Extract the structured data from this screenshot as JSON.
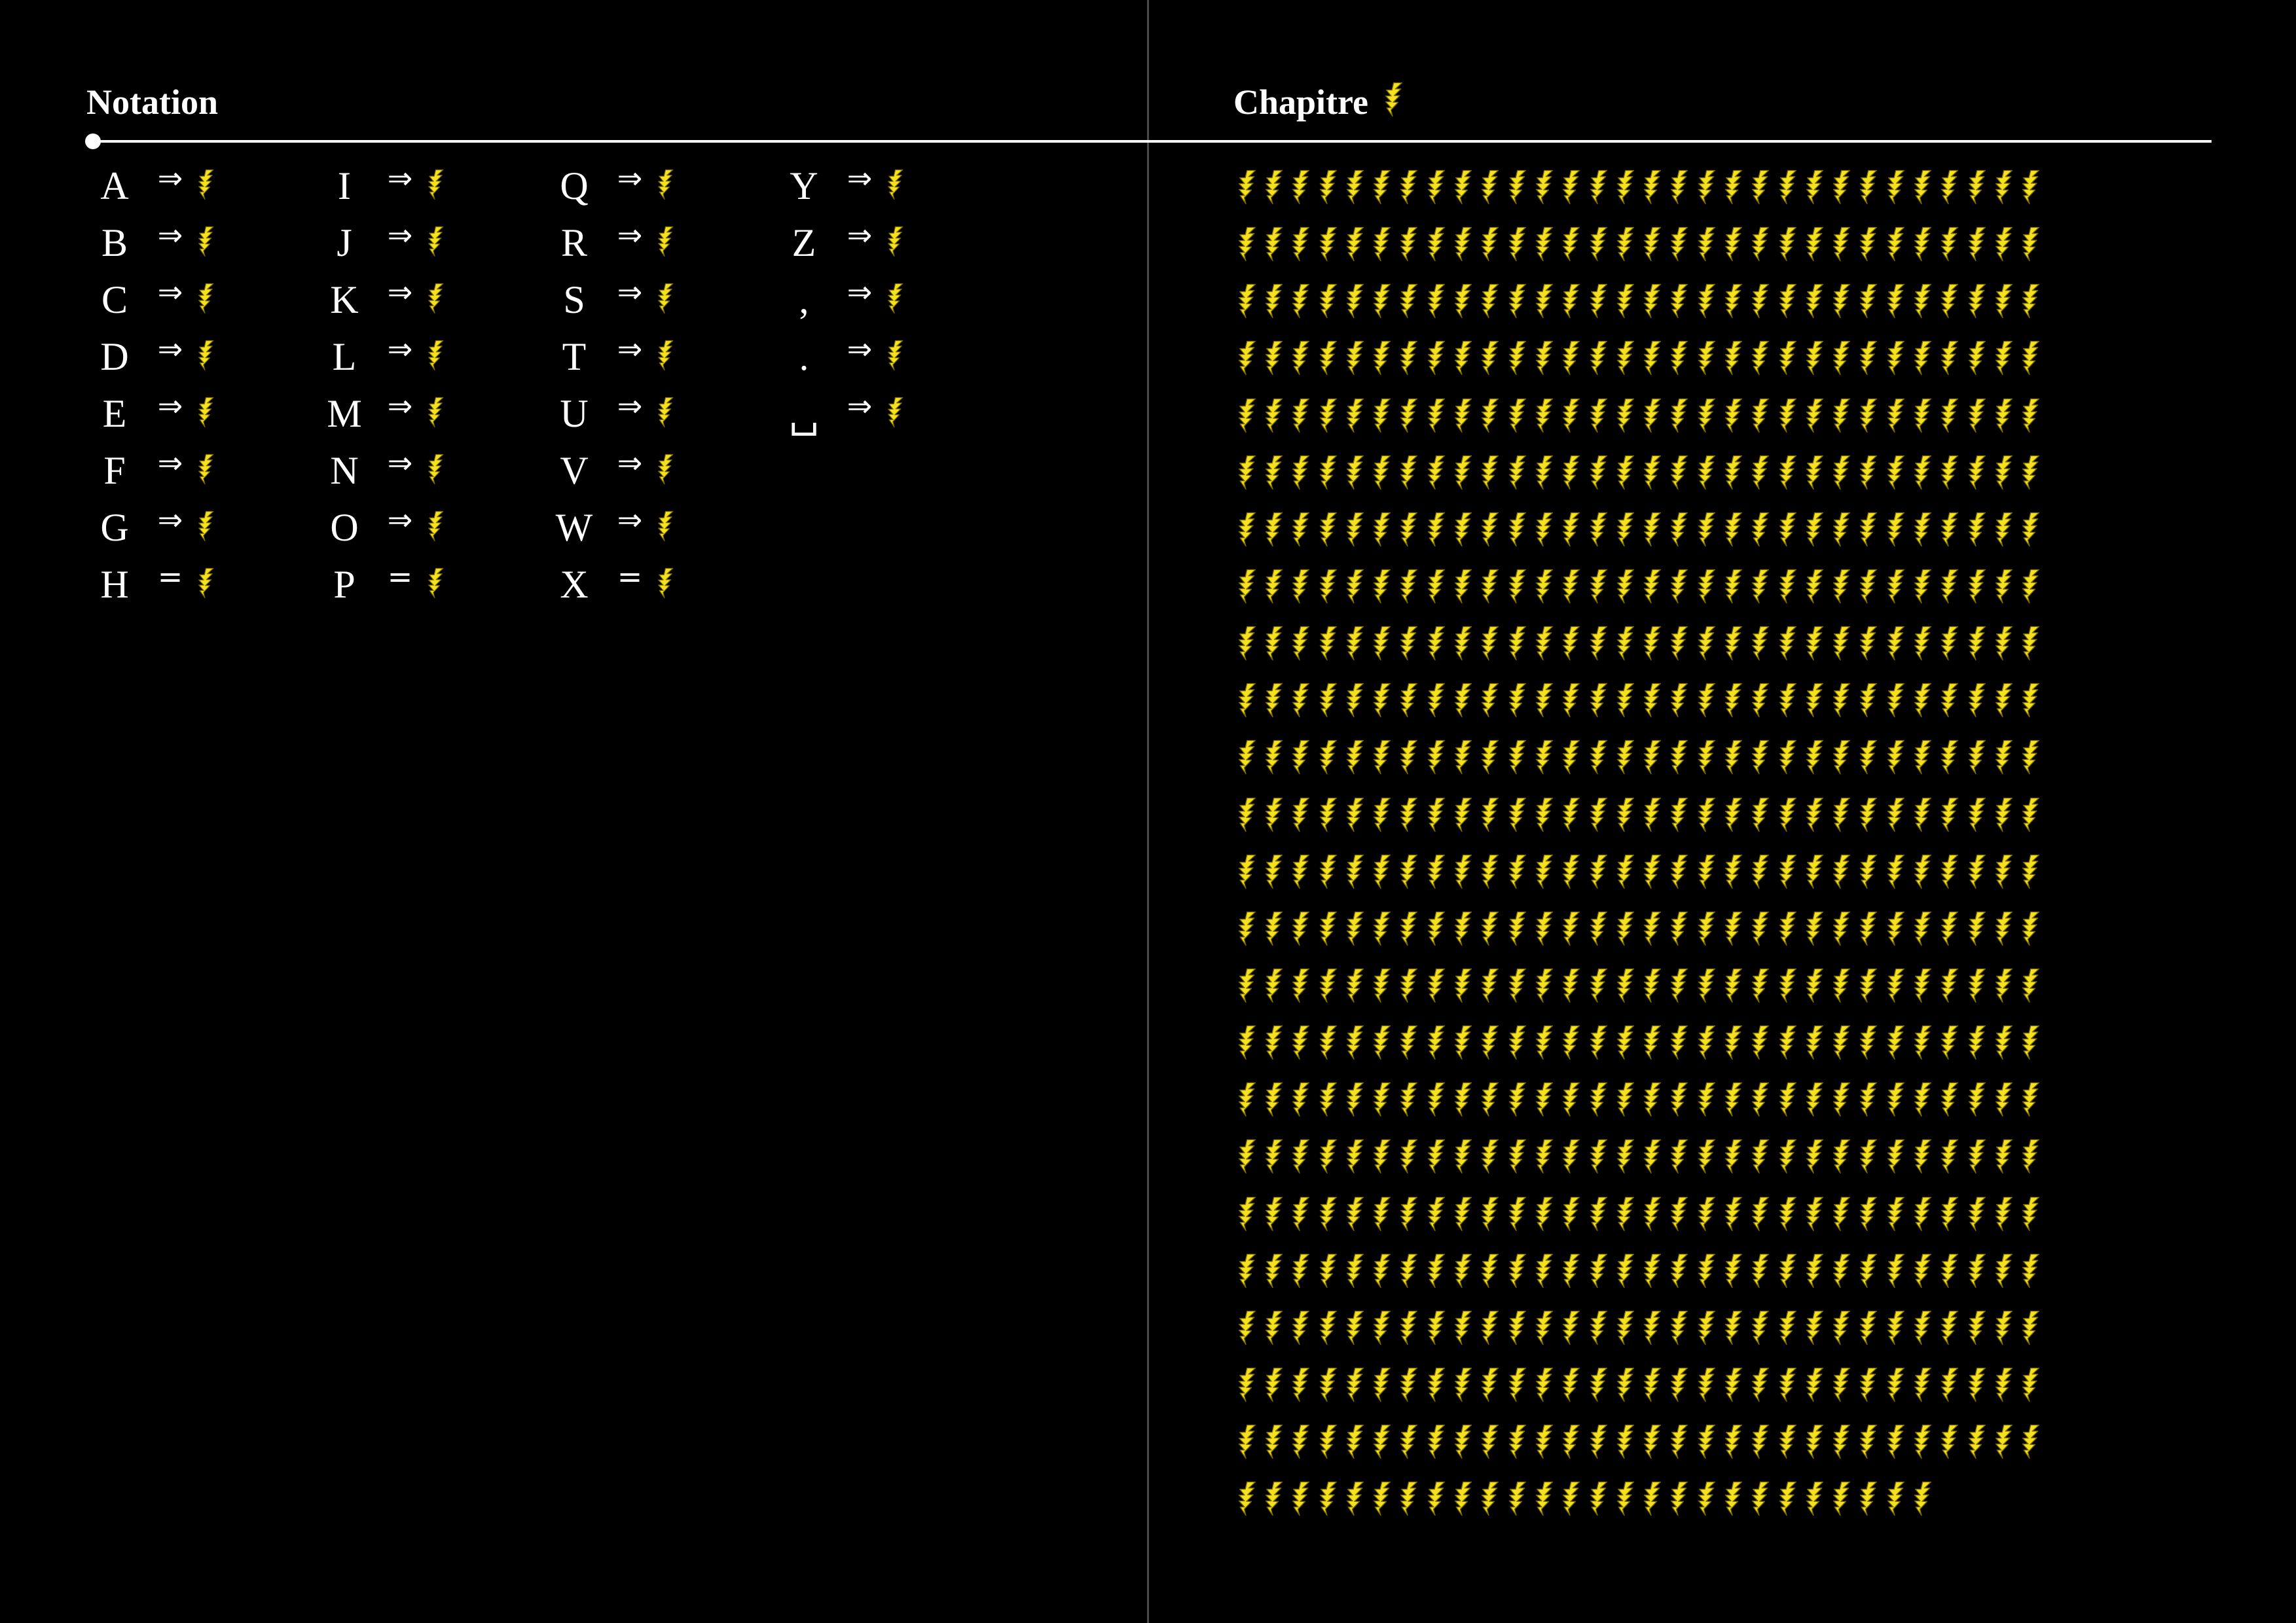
{
  "notation": {
    "title": "Notation",
    "columns": [
      [
        {
          "char": "A",
          "op": "⇒"
        },
        {
          "char": "B",
          "op": "⇒"
        },
        {
          "char": "C",
          "op": "⇒"
        },
        {
          "char": "D",
          "op": "⇒"
        },
        {
          "char": "E",
          "op": "⇒"
        },
        {
          "char": "F",
          "op": "⇒"
        },
        {
          "char": "G",
          "op": "⇒"
        },
        {
          "char": "H",
          "op": "="
        }
      ],
      [
        {
          "char": "I",
          "op": "⇒"
        },
        {
          "char": "J",
          "op": "⇒"
        },
        {
          "char": "K",
          "op": "⇒"
        },
        {
          "char": "L",
          "op": "⇒"
        },
        {
          "char": "M",
          "op": "⇒"
        },
        {
          "char": "N",
          "op": "⇒"
        },
        {
          "char": "O",
          "op": "⇒"
        },
        {
          "char": "P",
          "op": "="
        }
      ],
      [
        {
          "char": "Q",
          "op": "⇒"
        },
        {
          "char": "R",
          "op": "⇒"
        },
        {
          "char": "S",
          "op": "⇒"
        },
        {
          "char": "T",
          "op": "⇒"
        },
        {
          "char": "U",
          "op": "⇒"
        },
        {
          "char": "V",
          "op": "⇒"
        },
        {
          "char": "W",
          "op": "⇒"
        },
        {
          "char": "X",
          "op": "="
        }
      ],
      [
        {
          "char": "Y",
          "op": "⇒"
        },
        {
          "char": "Z",
          "op": "⇒"
        },
        {
          "char": ",",
          "op": "⇒"
        },
        {
          "char": ".",
          "op": "⇒"
        },
        {
          "char": "␣",
          "op": "⇒"
        }
      ]
    ]
  },
  "chapter": {
    "title": "Chapitre",
    "row_lengths": [
      30,
      30,
      30,
      30,
      30,
      30,
      30,
      30,
      30,
      30,
      30,
      30,
      30,
      30,
      30,
      30,
      30,
      30,
      30,
      30,
      30,
      30,
      30,
      26
    ]
  },
  "icons": {
    "glyph": "lightning-glyph-icon"
  },
  "colors": {
    "background": "#000000",
    "text": "#ffffff",
    "glyph_fill": "#f5e11d",
    "glyph_stroke": "#7a6a00",
    "gutter": "#4a4a4a"
  }
}
